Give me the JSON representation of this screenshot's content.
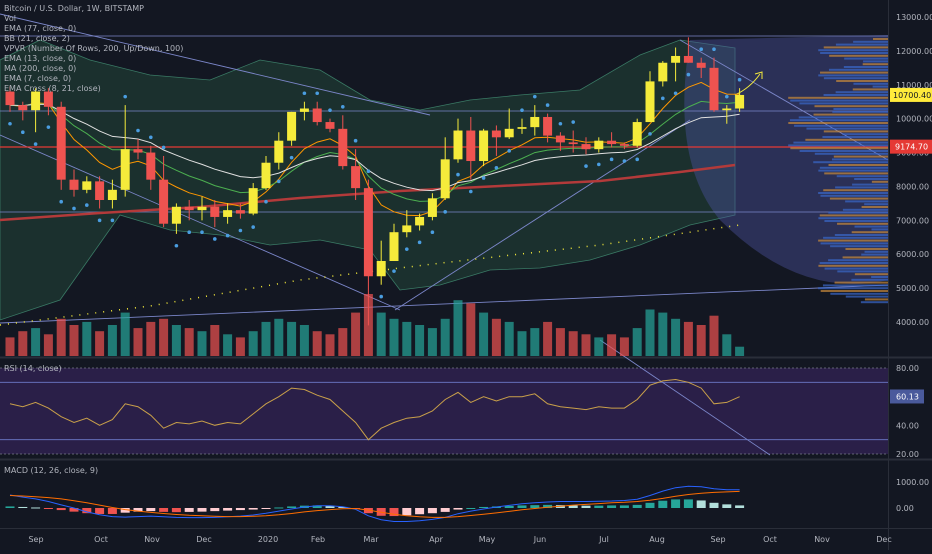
{
  "symbol_line": "Bitcoin / U.S. Dollar, 1W, BITSTAMP",
  "indicators": [
    "Vol",
    "EMA (77, close, 0)",
    "BB (21, close, 2)",
    "VPVR (Number Of Rows, 200, Up/Down, 100)",
    "EMA (13, close, 0)",
    "MA (200, close, 0)",
    "EMA (7, close, 0)",
    "EMA Cross (8, 21, close)"
  ],
  "rsi_label": "RSI (14, close)",
  "macd_label": "MACD (12, 26, close, 9)",
  "colors": {
    "background": "#131722",
    "up_candle": "#f5eb3b",
    "down_candle": "#ef5350",
    "up_volume": "#26a69a",
    "down_volume": "#ef5350",
    "ma200": "#b33a3a",
    "rsi_band": "#2a1f48",
    "last_price_badge": "#ffeb3b",
    "level_badge": "#e53935"
  },
  "chart_data": [
    {
      "type": "candlestick",
      "title": "Bitcoin / U.S. Dollar, 1W, BITSTAMP",
      "x_ticks": [
        "Sep",
        "Oct",
        "Nov",
        "Dec",
        "2020",
        "Feb",
        "Mar",
        "Apr",
        "May",
        "Jun",
        "Jul",
        "Aug",
        "Sep",
        "Oct",
        "Nov",
        "Dec"
      ],
      "y_ticks": [
        13000,
        12000,
        11000,
        10000,
        9000,
        8000,
        7000,
        6000,
        5000,
        4000
      ],
      "last_price": "10700.40",
      "level_price": "9174.70",
      "candles": [
        {
          "o": 10800,
          "h": 10950,
          "l": 10200,
          "c": 10400
        },
        {
          "o": 10400,
          "h": 10500,
          "l": 9950,
          "c": 10250
        },
        {
          "o": 10250,
          "h": 10900,
          "l": 9600,
          "c": 10800
        },
        {
          "o": 10800,
          "h": 10900,
          "l": 10100,
          "c": 10350
        },
        {
          "o": 10350,
          "h": 10500,
          "l": 7900,
          "c": 8200
        },
        {
          "o": 8200,
          "h": 8500,
          "l": 7700,
          "c": 7900
        },
        {
          "o": 7900,
          "h": 8300,
          "l": 7800,
          "c": 8150
        },
        {
          "o": 8150,
          "h": 8300,
          "l": 7350,
          "c": 7600
        },
        {
          "o": 7600,
          "h": 8200,
          "l": 7350,
          "c": 7900
        },
        {
          "o": 7900,
          "h": 10400,
          "l": 7700,
          "c": 9100
        },
        {
          "o": 9100,
          "h": 9400,
          "l": 8800,
          "c": 9000
        },
        {
          "o": 9000,
          "h": 9200,
          "l": 7900,
          "c": 8200
        },
        {
          "o": 8200,
          "h": 8900,
          "l": 6800,
          "c": 6900
        },
        {
          "o": 6900,
          "h": 7500,
          "l": 6600,
          "c": 7400
        },
        {
          "o": 7400,
          "h": 7600,
          "l": 7000,
          "c": 7300
        },
        {
          "o": 7300,
          "h": 7700,
          "l": 7000,
          "c": 7400
        },
        {
          "o": 7400,
          "h": 7600,
          "l": 6800,
          "c": 7100
        },
        {
          "o": 7100,
          "h": 7500,
          "l": 6900,
          "c": 7300
        },
        {
          "o": 7300,
          "h": 7500,
          "l": 7050,
          "c": 7200
        },
        {
          "o": 7200,
          "h": 8100,
          "l": 7150,
          "c": 7950
        },
        {
          "o": 7950,
          "h": 8900,
          "l": 7900,
          "c": 8700
        },
        {
          "o": 8700,
          "h": 9600,
          "l": 8500,
          "c": 9350
        },
        {
          "o": 9350,
          "h": 10200,
          "l": 9200,
          "c": 10200
        },
        {
          "o": 10200,
          "h": 10500,
          "l": 9950,
          "c": 10300
        },
        {
          "o": 10300,
          "h": 10500,
          "l": 9800,
          "c": 9900
        },
        {
          "o": 9900,
          "h": 10000,
          "l": 9600,
          "c": 9700
        },
        {
          "o": 9700,
          "h": 10100,
          "l": 8500,
          "c": 8600
        },
        {
          "o": 8600,
          "h": 9100,
          "l": 7600,
          "c": 7950
        },
        {
          "o": 7950,
          "h": 8200,
          "l": 3900,
          "c": 5350
        },
        {
          "o": 5350,
          "h": 6400,
          "l": 5100,
          "c": 5800
        },
        {
          "o": 5800,
          "h": 6900,
          "l": 5850,
          "c": 6650
        },
        {
          "o": 6650,
          "h": 7300,
          "l": 6500,
          "c": 6850
        },
        {
          "o": 6850,
          "h": 7200,
          "l": 6700,
          "c": 7100
        },
        {
          "o": 7100,
          "h": 7800,
          "l": 7000,
          "c": 7650
        },
        {
          "o": 7650,
          "h": 9450,
          "l": 7600,
          "c": 8800
        },
        {
          "o": 8800,
          "h": 10000,
          "l": 8700,
          "c": 9650
        },
        {
          "o": 9650,
          "h": 10050,
          "l": 8200,
          "c": 8750
        },
        {
          "o": 8750,
          "h": 9700,
          "l": 8600,
          "c": 9650
        },
        {
          "o": 9650,
          "h": 9800,
          "l": 8900,
          "c": 9450
        },
        {
          "o": 9450,
          "h": 10300,
          "l": 9400,
          "c": 9700
        },
        {
          "o": 9700,
          "h": 10000,
          "l": 9550,
          "c": 9750
        },
        {
          "o": 9750,
          "h": 10400,
          "l": 9500,
          "c": 10050
        },
        {
          "o": 10050,
          "h": 10150,
          "l": 9300,
          "c": 9500
        },
        {
          "o": 9500,
          "h": 9600,
          "l": 9050,
          "c": 9300
        },
        {
          "o": 9300,
          "h": 9650,
          "l": 9000,
          "c": 9250
        },
        {
          "o": 9250,
          "h": 9450,
          "l": 8950,
          "c": 9100
        },
        {
          "o": 9100,
          "h": 9450,
          "l": 9000,
          "c": 9350
        },
        {
          "o": 9350,
          "h": 9600,
          "l": 9150,
          "c": 9250
        },
        {
          "o": 9250,
          "h": 9300,
          "l": 9100,
          "c": 9200
        },
        {
          "o": 9200,
          "h": 10000,
          "l": 9150,
          "c": 9900
        },
        {
          "o": 9900,
          "h": 11400,
          "l": 9900,
          "c": 11100
        },
        {
          "o": 11100,
          "h": 11700,
          "l": 10950,
          "c": 11650
        },
        {
          "o": 11650,
          "h": 12100,
          "l": 11100,
          "c": 11850
        },
        {
          "o": 11850,
          "h": 12400,
          "l": 11650,
          "c": 11650
        },
        {
          "o": 11650,
          "h": 11800,
          "l": 11200,
          "c": 11500
        },
        {
          "o": 11500,
          "h": 11800,
          "l": 10200,
          "c": 10250
        },
        {
          "o": 10250,
          "h": 10400,
          "l": 9850,
          "c": 10300
        },
        {
          "o": 10300,
          "h": 10900,
          "l": 10200,
          "c": 10700
        }
      ],
      "volume_pct": [
        30,
        40,
        45,
        35,
        60,
        50,
        55,
        40,
        50,
        70,
        45,
        55,
        60,
        50,
        45,
        40,
        50,
        35,
        30,
        40,
        55,
        60,
        55,
        50,
        40,
        35,
        45,
        70,
        100,
        70,
        60,
        55,
        50,
        45,
        60,
        90,
        85,
        70,
        60,
        55,
        40,
        45,
        55,
        45,
        40,
        35,
        30,
        35,
        30,
        45,
        75,
        70,
        60,
        55,
        50,
        65,
        35,
        15
      ]
    },
    {
      "type": "line",
      "title": "RSI (14, close)",
      "y_ticks": [
        80.0,
        60.0,
        40.0,
        20.0
      ],
      "band": [
        70,
        30
      ],
      "last_value": "60.13",
      "values": [
        55,
        53,
        56,
        52,
        46,
        42,
        45,
        40,
        44,
        55,
        53,
        47,
        38,
        42,
        41,
        43,
        40,
        42,
        41,
        48,
        55,
        60,
        66,
        65,
        61,
        58,
        50,
        42,
        30,
        38,
        42,
        45,
        46,
        50,
        58,
        63,
        56,
        60,
        57,
        60,
        60,
        62,
        55,
        53,
        52,
        51,
        53,
        52,
        52,
        58,
        68,
        71,
        72,
        70,
        66,
        55,
        56,
        60
      ]
    },
    {
      "type": "bar",
      "title": "MACD (12, 26, close, 9)",
      "y_ticks": [
        1000.0,
        0.0
      ],
      "histogram": [
        60,
        40,
        20,
        -20,
        -80,
        -140,
        -200,
        -230,
        -230,
        -180,
        -140,
        -120,
        -150,
        -160,
        -150,
        -140,
        -120,
        -100,
        -80,
        -60,
        -20,
        20,
        60,
        90,
        100,
        80,
        40,
        -20,
        -200,
        -300,
        -310,
        -280,
        -240,
        -200,
        -150,
        -60,
        0,
        40,
        60,
        80,
        100,
        110,
        120,
        110,
        100,
        90,
        90,
        100,
        100,
        120,
        200,
        280,
        330,
        330,
        290,
        200,
        140,
        100
      ],
      "macd_line": [
        500,
        420,
        350,
        250,
        120,
        0,
        -150,
        -260,
        -330,
        -350,
        -330,
        -310,
        -340,
        -360,
        -370,
        -370,
        -360,
        -340,
        -310,
        -270,
        -200,
        -120,
        -40,
        40,
        90,
        90,
        50,
        -50,
        -300,
        -450,
        -520,
        -520,
        -490,
        -440,
        -360,
        -220,
        -120,
        -40,
        40,
        100,
        160,
        200,
        230,
        250,
        250,
        250,
        260,
        270,
        290,
        340,
        480,
        650,
        780,
        840,
        820,
        740,
        700,
        700
      ],
      "signal_line": [
        480,
        460,
        430,
        400,
        350,
        280,
        200,
        110,
        20,
        -60,
        -120,
        -170,
        -210,
        -250,
        -280,
        -300,
        -320,
        -330,
        -330,
        -320,
        -300,
        -260,
        -210,
        -150,
        -100,
        -60,
        -30,
        -20,
        -80,
        -160,
        -240,
        -300,
        -340,
        -360,
        -360,
        -330,
        -290,
        -240,
        -190,
        -130,
        -70,
        -20,
        30,
        70,
        110,
        140,
        170,
        200,
        220,
        250,
        300,
        370,
        450,
        520,
        570,
        600,
        620,
        640
      ]
    }
  ]
}
